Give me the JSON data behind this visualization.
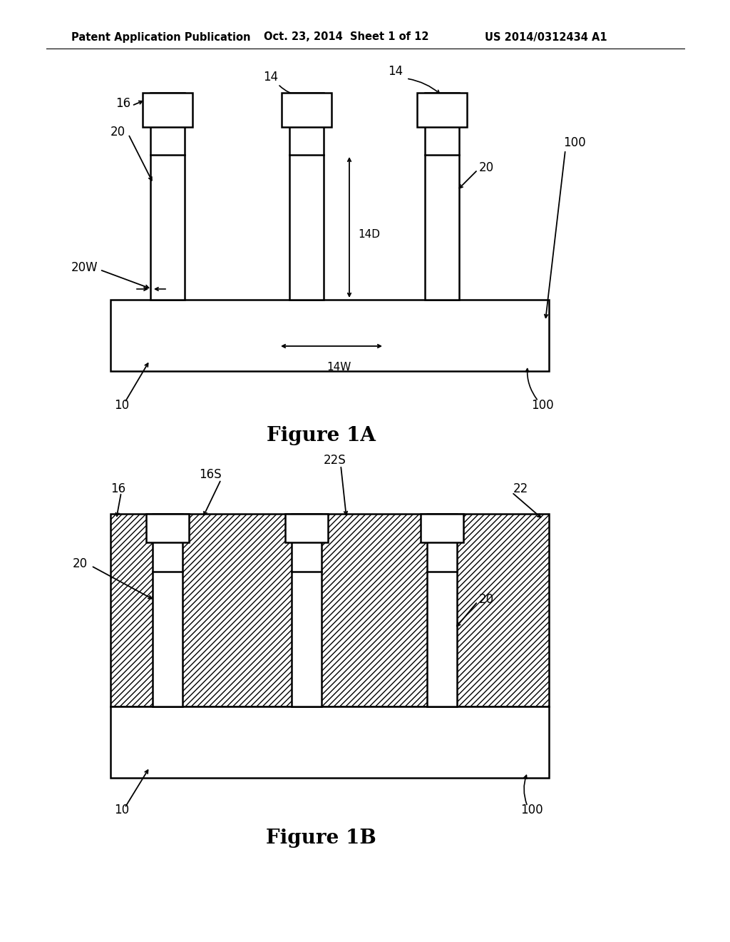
{
  "header_left": "Patent Application Publication",
  "header_center": "Oct. 23, 2014  Sheet 1 of 12",
  "header_right": "US 2014/0312434 A1",
  "fig1a_title": "Figure 1A",
  "fig1b_title": "Figure 1B",
  "bg_color": "#ffffff",
  "line_color": "#000000"
}
